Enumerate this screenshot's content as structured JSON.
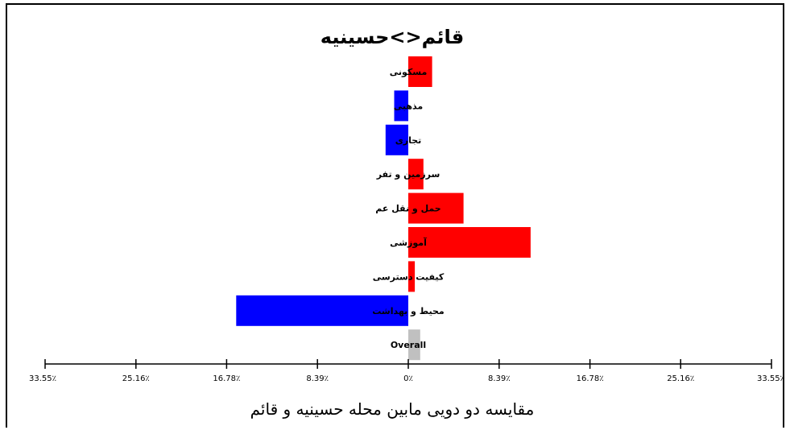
{
  "chart_data": {
    "type": "bar",
    "orientation": "horizontal-diverging",
    "title": "قائم<>حسینیه",
    "xlabel": "مقایسه دو دویی مابین محله حسینیه و قائم",
    "ylabel": "",
    "xlim": [
      -33.55,
      33.55
    ],
    "tick_labels": [
      "33.55٪",
      "25.16٪",
      "16.78٪",
      "8.39٪",
      "0٪",
      "8.39٪",
      "16.78٪",
      "25.16٪",
      "33.55٪"
    ],
    "tick_values": [
      -33.55,
      -25.16,
      -16.78,
      -8.39,
      0,
      8.39,
      16.78,
      25.16,
      33.55
    ],
    "categories": [
      "مسکونی",
      "مذهبی",
      "تجاری",
      "سرزمین و تفر",
      "حمل و نقل عم",
      "آموزشی",
      "کیفیت دسترسی",
      "محیط و بهداشت",
      "Overall"
    ],
    "values": [
      2.2,
      -1.3,
      -2.1,
      1.4,
      5.1,
      11.3,
      0.6,
      -15.9,
      1.1
    ],
    "colors": {
      "positive": "#ff0000",
      "negative": "#0000ff",
      "overall": "#c0c0c0"
    },
    "grid": false,
    "legend": "none"
  }
}
